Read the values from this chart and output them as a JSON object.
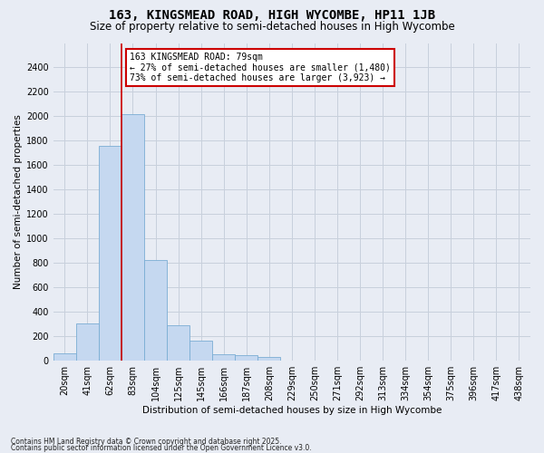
{
  "title": "163, KINGSMEAD ROAD, HIGH WYCOMBE, HP11 1JB",
  "subtitle": "Size of property relative to semi-detached houses in High Wycombe",
  "xlabel": "Distribution of semi-detached houses by size in High Wycombe",
  "ylabel": "Number of semi-detached properties",
  "categories": [
    "20sqm",
    "41sqm",
    "62sqm",
    "83sqm",
    "104sqm",
    "125sqm",
    "145sqm",
    "166sqm",
    "187sqm",
    "208sqm",
    "229sqm",
    "250sqm",
    "271sqm",
    "292sqm",
    "313sqm",
    "334sqm",
    "354sqm",
    "375sqm",
    "396sqm",
    "417sqm",
    "438sqm"
  ],
  "values": [
    55,
    300,
    1760,
    2020,
    820,
    290,
    160,
    50,
    45,
    25,
    0,
    0,
    0,
    0,
    0,
    0,
    0,
    0,
    0,
    0,
    0
  ],
  "bar_color": "#c5d8f0",
  "bar_edge_color": "#7aadd4",
  "grid_color": "#c8d0dc",
  "background_color": "#e8ecf4",
  "annotation_line1": "163 KINGSMEAD ROAD: 79sqm",
  "annotation_line2": "← 27% of semi-detached houses are smaller (1,480)",
  "annotation_line3": "73% of semi-detached houses are larger (3,923) →",
  "annotation_box_color": "#ffffff",
  "annotation_box_edge": "#cc0000",
  "red_line_x": 2.5,
  "ylim": [
    0,
    2600
  ],
  "yticks": [
    0,
    200,
    400,
    600,
    800,
    1000,
    1200,
    1400,
    1600,
    1800,
    2000,
    2200,
    2400
  ],
  "footnote1": "Contains HM Land Registry data © Crown copyright and database right 2025.",
  "footnote2": "Contains public sector information licensed under the Open Government Licence v3.0.",
  "title_fontsize": 10,
  "subtitle_fontsize": 8.5,
  "axis_label_fontsize": 7.5,
  "tick_fontsize": 7,
  "annot_fontsize": 7
}
